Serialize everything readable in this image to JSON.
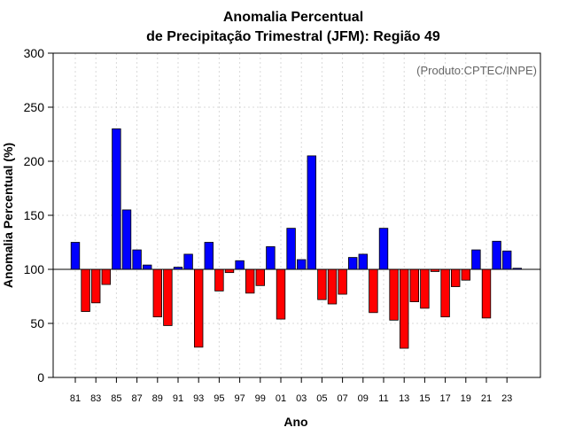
{
  "chart_data": {
    "type": "bar",
    "title": "Anomalia Percentual",
    "subtitle": "de Precipitação Trimestral (JFM): Região 49",
    "xlabel": "Ano",
    "ylabel": "Anomalia Percentual (%)",
    "credit": "(Produto:CPTEC/INPE)",
    "ylim": [
      0,
      300
    ],
    "yticks": [
      "0",
      "50",
      "100",
      "150",
      "200",
      "250",
      "300"
    ],
    "baseline": 100,
    "grid": true,
    "categories": [
      "81",
      "82",
      "83",
      "84",
      "85",
      "86",
      "87",
      "88",
      "89",
      "90",
      "91",
      "92",
      "93",
      "94",
      "95",
      "96",
      "97",
      "98",
      "99",
      "00",
      "01",
      "02",
      "03",
      "04",
      "05",
      "06",
      "07",
      "08",
      "09",
      "10",
      "11",
      "12",
      "13",
      "14",
      "15",
      "16",
      "17",
      "18",
      "19",
      "20",
      "21",
      "22",
      "23",
      "24"
    ],
    "values": [
      125,
      61,
      69,
      86,
      230,
      155,
      118,
      104,
      56,
      48,
      102,
      114,
      28,
      125,
      80,
      97,
      108,
      78,
      85,
      121,
      54,
      138,
      109,
      205,
      72,
      68,
      77,
      111,
      114,
      60,
      138,
      53,
      27,
      70,
      64,
      98,
      56,
      84,
      90,
      118,
      55,
      126,
      117,
      101
    ],
    "xtick_labels": [
      "81",
      "83",
      "85",
      "87",
      "89",
      "91",
      "93",
      "95",
      "97",
      "99",
      "01",
      "03",
      "05",
      "07",
      "09",
      "11",
      "13",
      "15",
      "17",
      "19",
      "21",
      "23"
    ],
    "colors": {
      "above": "#0000ff",
      "below": "#ff0000",
      "grid": "#d9d9d9",
      "axis": "#000000"
    }
  }
}
